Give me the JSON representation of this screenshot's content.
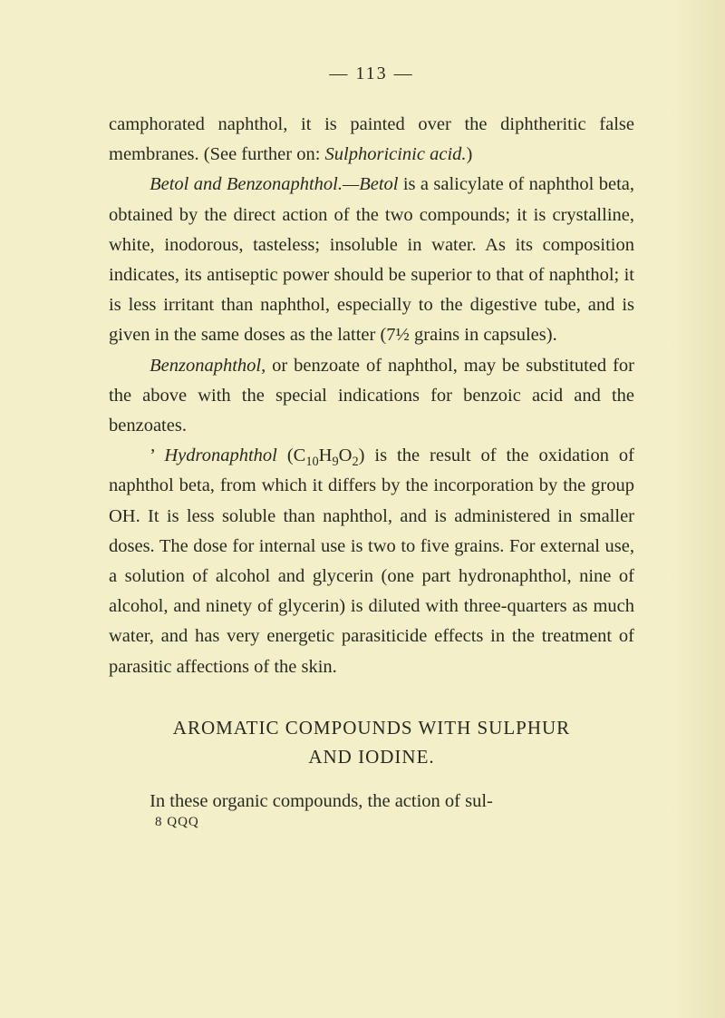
{
  "page": {
    "number_display": "— 113 —",
    "background_color": "#f3efc8",
    "text_color": "#2a2a22",
    "font_family": "Georgia, 'Times New Roman', serif",
    "body_font_size_pt": 15,
    "line_height": 1.62
  },
  "para1_a": "camphorated naphthol, it is painted over the diphtheritic false membranes.  (See further on:  ",
  "para1_b": "Sulphoricinic acid.",
  "para1_c": ")",
  "para2_a": "Betol and Benzonaphthol.—Betol",
  "para2_b": " is a salicylate of naphthol beta, obtained by the direct action of the two compounds; it is crystalline, white, inodorous, tasteless; insoluble in water.  As its composition indicates, its antiseptic power should be superior to that of naphthol; it is less irritant than naphthol, especially to the digestive tube, and is given in the same doses as the latter (7½ grains in capsules).",
  "para3_a": "Benzonaphthol,",
  "para3_b": " or benzoate of naphthol, may be substituted for the above with the special indications for benzoic acid and the benzoates.",
  "para4_a": "Hydronaphthol",
  "para4_b": " (C",
  "para4_sub1": "10",
  "para4_c": "H",
  "para4_sub2": "9",
  "para4_d": "O",
  "para4_sub3": "2",
  "para4_e": ") is the result of the oxidation of naphthol beta, from which it differs by the incorporation by the group OH.  It is less soluble than naphthol, and is administered in smaller doses.  The dose for internal use is two to five grains.  For external use, a solution of alcohol and glycerin (one part hydronaphthol, nine of alcohol, and ninety of glycerin) is diluted with three-quarters as much water, and has very energetic parasiticide effects in the treatment of parasitic affections of the skin.",
  "section_heading_line1": "AROMATIC  COMPOUNDS  WITH  SULPHUR",
  "section_heading_line2": "AND  IODINE.",
  "para5": "In these organic compounds, the action of sul-",
  "signature": "8  QQQ"
}
